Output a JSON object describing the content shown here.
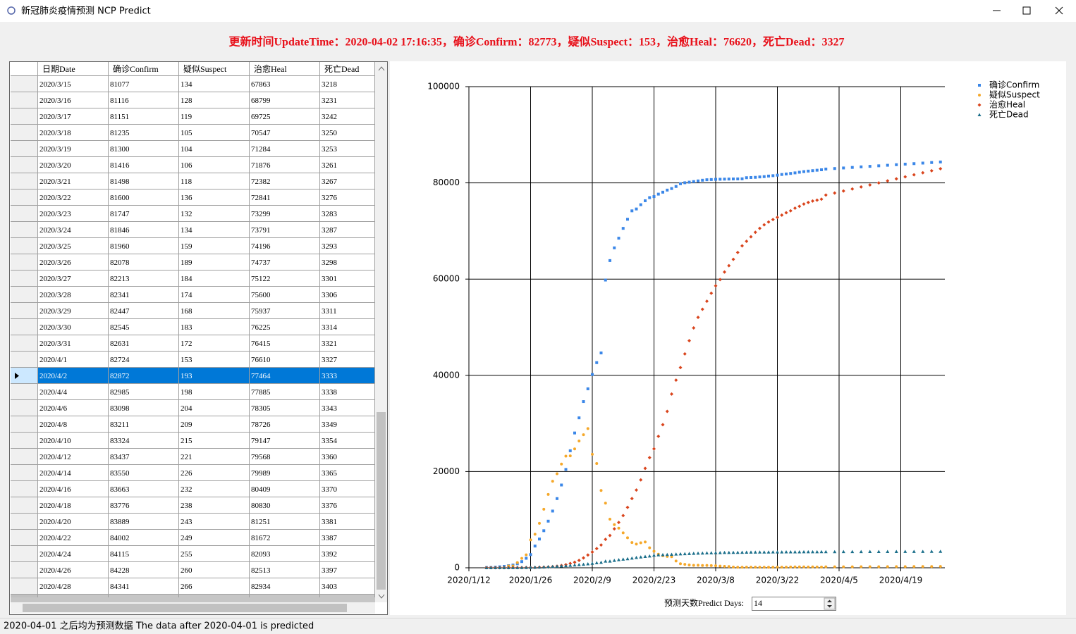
{
  "window_title": "新冠肺炎疫情预测 NCP Predict",
  "header": "更新时间UpdateTime：2020-04-02 17:16:35，确诊Confirm：82773，疑似Suspect：153，治愈Heal：76620，死亡Dead：3327",
  "table": {
    "columns": [
      "日期Date",
      "确诊Confirm",
      "疑似Suspect",
      "治愈Heal",
      "死亡Dead"
    ],
    "selected_row": 18,
    "rows": [
      [
        "2020/3/15",
        "81077",
        "134",
        "67863",
        "3218"
      ],
      [
        "2020/3/16",
        "81116",
        "128",
        "68799",
        "3231"
      ],
      [
        "2020/3/17",
        "81151",
        "119",
        "69725",
        "3242"
      ],
      [
        "2020/3/18",
        "81235",
        "105",
        "70547",
        "3250"
      ],
      [
        "2020/3/19",
        "81300",
        "104",
        "71284",
        "3253"
      ],
      [
        "2020/3/20",
        "81416",
        "106",
        "71876",
        "3261"
      ],
      [
        "2020/3/21",
        "81498",
        "118",
        "72382",
        "3267"
      ],
      [
        "2020/3/22",
        "81600",
        "136",
        "72841",
        "3276"
      ],
      [
        "2020/3/23",
        "81747",
        "132",
        "73299",
        "3283"
      ],
      [
        "2020/3/24",
        "81846",
        "134",
        "73791",
        "3287"
      ],
      [
        "2020/3/25",
        "81960",
        "159",
        "74196",
        "3293"
      ],
      [
        "2020/3/26",
        "82078",
        "189",
        "74737",
        "3298"
      ],
      [
        "2020/3/27",
        "82213",
        "184",
        "75122",
        "3301"
      ],
      [
        "2020/3/28",
        "82341",
        "174",
        "75600",
        "3306"
      ],
      [
        "2020/3/29",
        "82447",
        "168",
        "75937",
        "3311"
      ],
      [
        "2020/3/30",
        "82545",
        "183",
        "76225",
        "3314"
      ],
      [
        "2020/3/31",
        "82631",
        "172",
        "76415",
        "3321"
      ],
      [
        "2020/4/1",
        "82724",
        "153",
        "76610",
        "3327"
      ],
      [
        "2020/4/2",
        "82872",
        "193",
        "77464",
        "3333"
      ],
      [
        "2020/4/4",
        "82985",
        "198",
        "77885",
        "3338"
      ],
      [
        "2020/4/6",
        "83098",
        "204",
        "78305",
        "3343"
      ],
      [
        "2020/4/8",
        "83211",
        "209",
        "78726",
        "3349"
      ],
      [
        "2020/4/10",
        "83324",
        "215",
        "79147",
        "3354"
      ],
      [
        "2020/4/12",
        "83437",
        "221",
        "79568",
        "3360"
      ],
      [
        "2020/4/14",
        "83550",
        "226",
        "79989",
        "3365"
      ],
      [
        "2020/4/16",
        "83663",
        "232",
        "80409",
        "3370"
      ],
      [
        "2020/4/18",
        "83776",
        "238",
        "80830",
        "3376"
      ],
      [
        "2020/4/20",
        "83889",
        "243",
        "81251",
        "3381"
      ],
      [
        "2020/4/22",
        "84002",
        "249",
        "81672",
        "3387"
      ],
      [
        "2020/4/24",
        "84115",
        "255",
        "82093",
        "3392"
      ],
      [
        "2020/4/26",
        "84228",
        "260",
        "82513",
        "3397"
      ],
      [
        "2020/4/28",
        "84341",
        "266",
        "82934",
        "3403"
      ]
    ]
  },
  "chart_data": {
    "type": "scatter",
    "x": [
      "2020/1/16",
      "2020/1/17",
      "2020/1/18",
      "2020/1/19",
      "2020/1/20",
      "2020/1/21",
      "2020/1/22",
      "2020/1/23",
      "2020/1/24",
      "2020/1/25",
      "2020/1/26",
      "2020/1/27",
      "2020/1/28",
      "2020/1/29",
      "2020/1/30",
      "2020/1/31",
      "2020/2/1",
      "2020/2/2",
      "2020/2/3",
      "2020/2/4",
      "2020/2/5",
      "2020/2/6",
      "2020/2/7",
      "2020/2/8",
      "2020/2/9",
      "2020/2/10",
      "2020/2/11",
      "2020/2/12",
      "2020/2/13",
      "2020/2/14",
      "2020/2/15",
      "2020/2/16",
      "2020/2/17",
      "2020/2/18",
      "2020/2/19",
      "2020/2/20",
      "2020/2/21",
      "2020/2/22",
      "2020/2/23",
      "2020/2/24",
      "2020/2/25",
      "2020/2/26",
      "2020/2/27",
      "2020/2/28",
      "2020/2/29",
      "2020/3/1",
      "2020/3/2",
      "2020/3/3",
      "2020/3/4",
      "2020/3/5",
      "2020/3/6",
      "2020/3/7",
      "2020/3/8",
      "2020/3/9",
      "2020/3/10",
      "2020/3/11",
      "2020/3/12",
      "2020/3/13",
      "2020/3/14",
      "2020/3/15",
      "2020/3/16",
      "2020/3/17",
      "2020/3/18",
      "2020/3/19",
      "2020/3/20",
      "2020/3/21",
      "2020/3/22",
      "2020/3/23",
      "2020/3/24",
      "2020/3/25",
      "2020/3/26",
      "2020/3/27",
      "2020/3/28",
      "2020/3/29",
      "2020/3/30",
      "2020/3/31",
      "2020/4/1",
      "2020/4/2",
      "2020/4/4",
      "2020/4/6",
      "2020/4/8",
      "2020/4/10",
      "2020/4/12",
      "2020/4/14",
      "2020/4/16",
      "2020/4/18",
      "2020/4/20",
      "2020/4/22",
      "2020/4/24",
      "2020/4/26",
      "2020/4/28"
    ],
    "series": [
      {
        "name": "确诊Confirm",
        "color": "#3b87e8",
        "marker": "square",
        "values": [
          45,
          62,
          121,
          198,
          291,
          440,
          571,
          830,
          1287,
          1975,
          2744,
          4515,
          5974,
          7711,
          9692,
          11791,
          14380,
          17205,
          20438,
          24324,
          28018,
          31161,
          34546,
          37198,
          40171,
          42638,
          44653,
          59804,
          63851,
          66492,
          68500,
          70548,
          72436,
          74185,
          74576,
          75465,
          76288,
          76936,
          77150,
          77658,
          78064,
          78497,
          78824,
          79251,
          79824,
          80026,
          80151,
          80270,
          80409,
          80552,
          80651,
          80695,
          80735,
          80754,
          80778,
          80793,
          80813,
          80824,
          80844,
          81077,
          81116,
          81151,
          81235,
          81300,
          81416,
          81498,
          81600,
          81747,
          81846,
          81960,
          82078,
          82213,
          82341,
          82447,
          82545,
          82631,
          82724,
          82872,
          82985,
          83098,
          83211,
          83324,
          83437,
          83550,
          83663,
          83776,
          83889,
          84002,
          84115,
          84228,
          84341
        ]
      },
      {
        "name": "疑似Suspect",
        "color": "#f5a82a",
        "marker": "circle",
        "values": [
          0,
          0,
          0,
          0,
          54,
          393,
          393,
          1072,
          1965,
          2684,
          5794,
          6973,
          9239,
          12167,
          15238,
          17988,
          19544,
          21558,
          23214,
          23260,
          24702,
          26359,
          27657,
          28942,
          23589,
          21675,
          16067,
          13435,
          10109,
          8969,
          8228,
          7264,
          6242,
          5248,
          4922,
          5206,
          5365,
          4148,
          3434,
          2824,
          2491,
          2358,
          2308,
          1418,
          851,
          715,
          587,
          520,
          522,
          482,
          502,
          458,
          421,
          349,
          285,
          253,
          147,
          115,
          113,
          134,
          128,
          119,
          105,
          104,
          106,
          118,
          136,
          132,
          134,
          159,
          189,
          184,
          174,
          168,
          183,
          172,
          153,
          193,
          198,
          204,
          209,
          215,
          221,
          226,
          232,
          238,
          243,
          249,
          255,
          260,
          266
        ]
      },
      {
        "name": "治愈Heal",
        "color": "#d9441c",
        "marker": "diamond",
        "values": [
          15,
          19,
          24,
          25,
          25,
          25,
          28,
          34,
          38,
          49,
          51,
          60,
          103,
          124,
          171,
          243,
          328,
          475,
          632,
          892,
          1153,
          1540,
          2050,
          2649,
          3281,
          3996,
          4740,
          5911,
          6723,
          8096,
          9419,
          10844,
          12552,
          14376,
          16155,
          18264,
          20659,
          22888,
          24734,
          27323,
          29745,
          32495,
          36117,
          39002,
          41625,
          44462,
          47204,
          49856,
          52045,
          53726,
          55404,
          57065,
          58600,
          59897,
          61475,
          62793,
          64111,
          65541,
          66911,
          67863,
          68799,
          69725,
          70547,
          71284,
          71876,
          72382,
          72841,
          73299,
          73791,
          74196,
          74737,
          75122,
          75600,
          75937,
          76225,
          76415,
          76610,
          77464,
          77885,
          78305,
          78726,
          79147,
          79568,
          79989,
          80409,
          80830,
          81251,
          81672,
          82093,
          82513,
          82934
        ]
      },
      {
        "name": "死亡Dead",
        "color": "#1a6e8a",
        "marker": "triangle",
        "values": [
          2,
          2,
          3,
          4,
          6,
          9,
          17,
          25,
          41,
          56,
          80,
          106,
          132,
          170,
          213,
          259,
          304,
          361,
          425,
          490,
          563,
          636,
          722,
          811,
          908,
          1016,
          1113,
          1367,
          1380,
          1523,
          1665,
          1770,
          1868,
          2004,
          2118,
          2236,
          2345,
          2442,
          2592,
          2663,
          2715,
          2744,
          2788,
          2835,
          2870,
          2912,
          2943,
          2981,
          3012,
          3042,
          3070,
          3097,
          3119,
          3136,
          3158,
          3169,
          3176,
          3189,
          3199,
          3218,
          3231,
          3242,
          3250,
          3253,
          3261,
          3267,
          3276,
          3283,
          3287,
          3293,
          3298,
          3301,
          3306,
          3311,
          3314,
          3321,
          3327,
          3333,
          3338,
          3343,
          3349,
          3354,
          3360,
          3365,
          3370,
          3376,
          3381,
          3387,
          3392,
          3397,
          3403
        ]
      }
    ],
    "xlim": [
      "2020/1/12",
      "2020/4/29"
    ],
    "xticks": [
      "2020/1/12",
      "2020/1/26",
      "2020/2/9",
      "2020/2/23",
      "2020/3/8",
      "2020/3/22",
      "2020/4/5",
      "2020/4/19"
    ],
    "ylim": [
      0,
      100000
    ],
    "yticks": [
      0,
      20000,
      40000,
      60000,
      80000,
      100000
    ],
    "grid": true,
    "legend": "top-right"
  },
  "predict_label": "预测天数Predict Days:",
  "predict_days": "14",
  "status": "2020-04-01 之后均为预测数据 The data after 2020-04-01 is predicted"
}
